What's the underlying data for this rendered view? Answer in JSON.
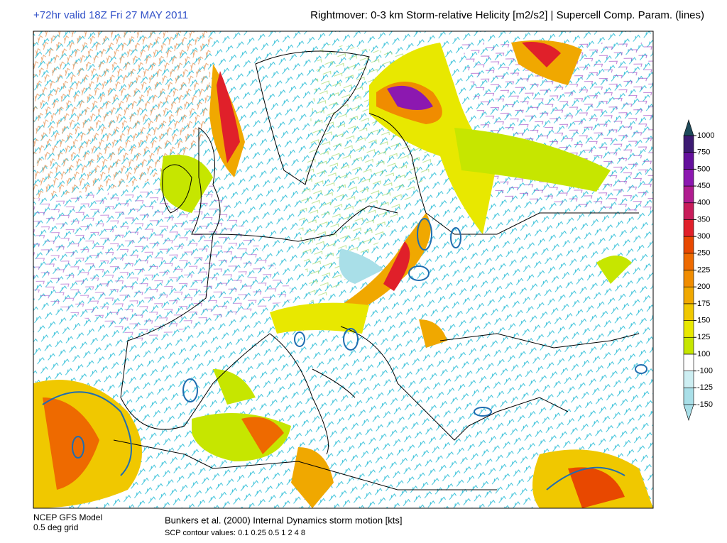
{
  "header": {
    "left": "+72hr valid 18Z Fri 27 MAY 2011",
    "right": "Rightmover: 0-3 km Storm-relative Helicity [m2/s2] | Supercell Comp. Param. (lines)"
  },
  "colorbar": {
    "levels": [
      -150,
      -125,
      -100,
      100,
      125,
      150,
      175,
      200,
      225,
      250,
      300,
      350,
      400,
      450,
      500,
      750,
      1000
    ],
    "colors": [
      "#a9dfe8",
      "#cdeef2",
      "#ffffff",
      "#c6e600",
      "#e8e800",
      "#f0c800",
      "#f0a800",
      "#f08c00",
      "#ee6a00",
      "#e84800",
      "#e0202a",
      "#c81c5a",
      "#b01c90",
      "#8c18b0",
      "#64109c",
      "#3c1a72"
    ],
    "under_color": "#a9dfe8",
    "over_color": "#1e4a5a"
  },
  "footer": {
    "model": "NCEP GFS Model",
    "grid": "0.5 deg grid",
    "motion": "Bunkers et al. (2000) Internal Dynamics storm motion [kts]",
    "scp": "SCP contour values: 0.1 0.25 0.5 1 2 4 8"
  }
}
